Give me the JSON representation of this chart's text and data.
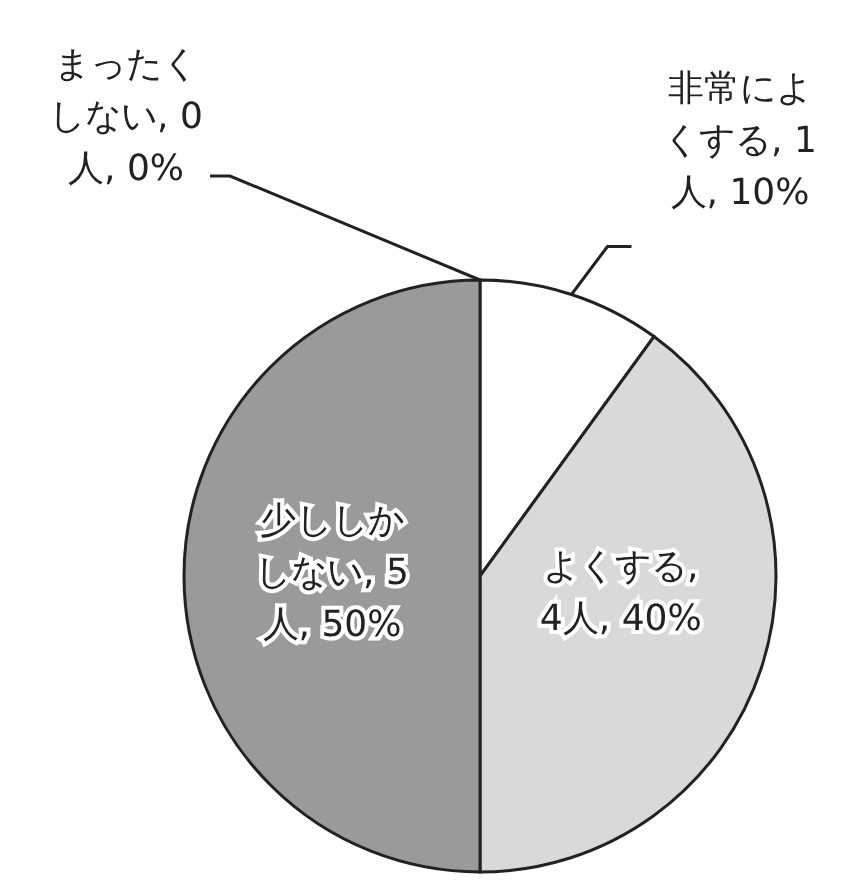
{
  "chart_data": {
    "type": "pie",
    "categories": [
      "非常によくする, 1人, 10%",
      "よくする, 4人, 40%",
      "少ししかしない, 5人, 50%",
      "まったくしない, 0人, 0%"
    ],
    "values": [
      10,
      40,
      50,
      0
    ],
    "colors": [
      "#ffffff",
      "#d9d9d9",
      "#9a9a9a",
      "#ffffff"
    ]
  }
}
